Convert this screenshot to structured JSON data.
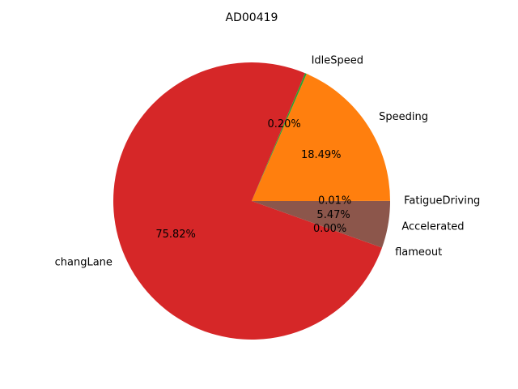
{
  "chart_data": {
    "type": "pie",
    "title": "AD00419",
    "start_angle_deg": 0,
    "direction": "counterclockwise",
    "slices": [
      {
        "label": "FatigueDriving",
        "pct_label": "0.01%",
        "value": 0.01,
        "color": "#1f77b4"
      },
      {
        "label": "Speeding",
        "pct_label": "18.49%",
        "value": 18.49,
        "color": "#ff7f0e"
      },
      {
        "label": "IdleSpeed",
        "pct_label": "0.20%",
        "value": 0.2,
        "color": "#2ca02c"
      },
      {
        "label": "changLane",
        "pct_label": "75.82%",
        "value": 75.82,
        "color": "#d62728"
      },
      {
        "label": "flameout",
        "pct_label": "0.00%",
        "value": 0.0001,
        "color": "#9467bd"
      },
      {
        "label": "Accelerated",
        "pct_label": "5.47%",
        "value": 5.47,
        "color": "#8c564b"
      }
    ]
  }
}
